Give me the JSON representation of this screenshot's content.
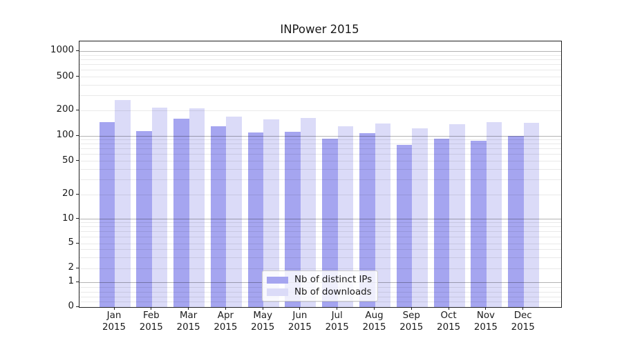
{
  "figure": {
    "title": "INPower 2015"
  },
  "chart_data": {
    "type": "bar",
    "title": "INPower 2015",
    "yscale": "symlog",
    "ylim": [
      0,
      1300
    ],
    "grid": true,
    "legend_position": "lower center",
    "categories": [
      "Jan 2015",
      "Feb 2015",
      "Mar 2015",
      "Apr 2015",
      "May 2015",
      "Jun 2015",
      "Jul 2015",
      "Aug 2015",
      "Sep 2015",
      "Oct 2015",
      "Nov 2015",
      "Dec 2015"
    ],
    "yticks": [
      0,
      1,
      2,
      5,
      10,
      20,
      50,
      100,
      200,
      500,
      1000
    ],
    "grid_major": [
      1,
      10,
      100,
      1000
    ],
    "grid_minor": [
      0.2,
      0.4,
      0.6,
      0.8,
      2,
      3,
      4,
      5,
      6,
      7,
      8,
      9,
      20,
      30,
      40,
      50,
      60,
      70,
      80,
      90,
      200,
      300,
      400,
      500,
      600,
      700,
      800,
      900
    ],
    "series": [
      {
        "name": "Nb of distinct IPs",
        "color": "#a5a5f0",
        "values": [
          145,
          115,
          161,
          131,
          110,
          111,
          93,
          107,
          78,
          93,
          87,
          100
        ]
      },
      {
        "name": "Nb of downloads",
        "color": "#dbdbf8",
        "values": [
          265,
          216,
          212,
          170,
          157,
          164,
          131,
          141,
          124,
          137,
          145,
          143
        ]
      }
    ]
  }
}
